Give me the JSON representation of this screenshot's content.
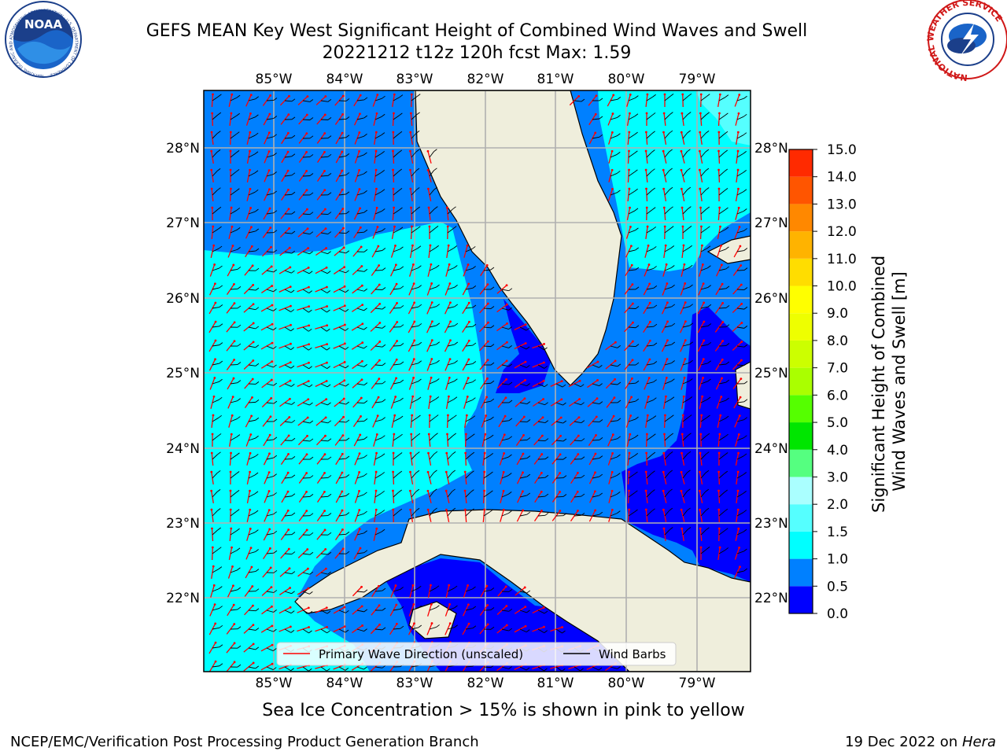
{
  "title": {
    "line1": "GEFS MEAN Key West Significant Height of Combined Wind Waves and Swell",
    "line2": "20221212 t12z 120h fcst   Max: 1.59"
  },
  "map": {
    "lon_labels": [
      "85°W",
      "84°W",
      "83°W",
      "82°W",
      "81°W",
      "80°W",
      "79°W"
    ],
    "lat_labels": [
      "28°N",
      "27°N",
      "26°N",
      "25°N",
      "24°N",
      "23°N",
      "22°N"
    ],
    "legend": {
      "wave_label": "Primary Wave Direction (unscaled)",
      "barb_label": "Wind Barbs"
    },
    "colors": {
      "land": "#efeedc",
      "band_0_0_5": "#0000ff",
      "band_0_5_1_0": "#0080ff",
      "band_1_0_1_5": "#00ffff",
      "band_1_5_2_0": "#55ffff",
      "wave_arrow": "#ff0000",
      "wind_barb": "#000000",
      "grid": "#b0b0b0"
    }
  },
  "colorbar": {
    "title_line1": "Significant Height of Combined",
    "title_line2": "Wind Waves and Swell [m]",
    "ticks": [
      "0.0",
      "0.5",
      "1.0",
      "1.5",
      "2.0",
      "3.0",
      "4.0",
      "5.0",
      "6.0",
      "7.0",
      "8.0",
      "9.0",
      "10.0",
      "11.0",
      "12.0",
      "13.0",
      "14.0",
      "15.0"
    ],
    "colors": [
      "#0000ff",
      "#0080ff",
      "#00ffff",
      "#55ffff",
      "#aaffff",
      "#55ff80",
      "#00e600",
      "#55ff00",
      "#aaff00",
      "#ccff00",
      "#eeff00",
      "#ffff00",
      "#ffdd00",
      "#ffb300",
      "#ff8800",
      "#ff5500",
      "#ff2a00",
      "#ff0000"
    ]
  },
  "logos": {
    "noaa_text": "NOAA",
    "noaa_ring_text": "NATIONAL OCEANIC AND ATMOSPHERIC ADMINISTRATION · U.S. DEPARTMENT OF COMMERCE",
    "nws_ring_text": "NATIONAL WEATHER SERVICE"
  },
  "footer": {
    "sea_ice_note": "Sea Ice Concentration > 15% is shown in pink to yellow",
    "left": "NCEP/EMC/Verification Post Processing Product Generation Branch",
    "right_date": "19 Dec 2022 on ",
    "right_host": "Hera"
  }
}
